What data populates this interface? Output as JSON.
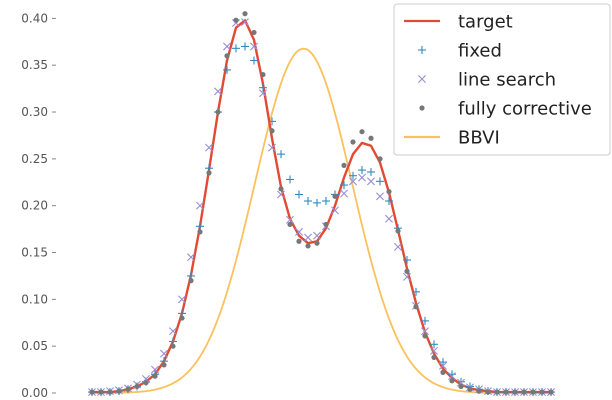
{
  "chart_data": {
    "type": "line",
    "title": "",
    "xlabel": "",
    "ylabel": "",
    "xlim": [
      -1.0,
      11.0
    ],
    "ylim": [
      0,
      0.41
    ],
    "y_ticks": [
      0.0,
      0.05,
      0.1,
      0.15,
      0.2,
      0.25,
      0.3,
      0.35,
      0.4
    ],
    "y_tick_labels": [
      "0.00",
      "0.05",
      "0.10",
      "0.15",
      "0.20",
      "0.25",
      "0.30",
      "0.35",
      "0.40"
    ],
    "x_tick_labels": [],
    "grid": false,
    "legend_position": "top-right",
    "sample_x": [
      -0.2,
      0.0,
      0.2,
      0.4,
      0.6,
      0.8,
      1.0,
      1.2,
      1.4,
      1.6,
      1.8,
      2.0,
      2.2,
      2.4,
      2.6,
      2.8,
      3.0,
      3.2,
      3.4,
      3.6,
      3.8,
      4.0,
      4.2,
      4.4,
      4.6,
      4.8,
      5.0,
      5.2,
      5.4,
      5.6,
      5.8,
      6.0,
      6.2,
      6.4,
      6.6,
      6.8,
      7.0,
      7.2,
      7.4,
      7.6,
      7.8,
      8.0,
      8.2,
      8.4,
      8.6,
      8.8,
      9.0,
      9.2,
      9.4,
      9.6,
      9.8,
      10.0
    ],
    "series": [
      {
        "name": "target",
        "style": "line",
        "color": "#e24a33",
        "values": [
          0.001,
          0.001,
          0.001,
          0.002,
          0.004,
          0.007,
          0.012,
          0.02,
          0.034,
          0.055,
          0.085,
          0.126,
          0.178,
          0.238,
          0.3,
          0.355,
          0.39,
          0.398,
          0.377,
          0.33,
          0.272,
          0.22,
          0.186,
          0.168,
          0.16,
          0.162,
          0.176,
          0.2,
          0.23,
          0.255,
          0.267,
          0.264,
          0.246,
          0.214,
          0.174,
          0.133,
          0.096,
          0.065,
          0.042,
          0.026,
          0.016,
          0.009,
          0.005,
          0.003,
          0.002,
          0.001,
          0.001,
          0.001,
          0.001,
          0.001,
          0.001,
          0.001
        ]
      },
      {
        "name": "fixed",
        "style": "plus",
        "color": "#348abd",
        "values": [
          0.001,
          0.001,
          0.001,
          0.002,
          0.004,
          0.007,
          0.012,
          0.02,
          0.034,
          0.055,
          0.085,
          0.125,
          0.178,
          0.24,
          0.3,
          0.345,
          0.368,
          0.37,
          0.355,
          0.326,
          0.29,
          0.255,
          0.228,
          0.212,
          0.205,
          0.203,
          0.205,
          0.212,
          0.222,
          0.232,
          0.238,
          0.236,
          0.226,
          0.205,
          0.176,
          0.142,
          0.108,
          0.077,
          0.052,
          0.033,
          0.02,
          0.012,
          0.007,
          0.004,
          0.002,
          0.001,
          0.001,
          0.001,
          0.001,
          0.001,
          0.001,
          0.001
        ]
      },
      {
        "name": "line search",
        "style": "x",
        "color": "#988ed5",
        "values": [
          0.001,
          0.001,
          0.002,
          0.003,
          0.005,
          0.009,
          0.015,
          0.025,
          0.042,
          0.066,
          0.1,
          0.145,
          0.2,
          0.262,
          0.322,
          0.37,
          0.395,
          0.396,
          0.37,
          0.32,
          0.262,
          0.212,
          0.185,
          0.172,
          0.166,
          0.168,
          0.178,
          0.195,
          0.213,
          0.226,
          0.23,
          0.226,
          0.21,
          0.186,
          0.156,
          0.124,
          0.093,
          0.066,
          0.045,
          0.029,
          0.018,
          0.011,
          0.006,
          0.004,
          0.002,
          0.001,
          0.001,
          0.001,
          0.001,
          0.001,
          0.001,
          0.001
        ]
      },
      {
        "name": "fully corrective",
        "style": "dot",
        "color": "#777777",
        "values": [
          0.001,
          0.001,
          0.001,
          0.002,
          0.004,
          0.007,
          0.011,
          0.018,
          0.03,
          0.05,
          0.08,
          0.12,
          0.172,
          0.235,
          0.3,
          0.36,
          0.398,
          0.405,
          0.385,
          0.34,
          0.28,
          0.218,
          0.18,
          0.162,
          0.157,
          0.16,
          0.18,
          0.21,
          0.243,
          0.268,
          0.279,
          0.272,
          0.25,
          0.215,
          0.173,
          0.13,
          0.092,
          0.061,
          0.038,
          0.022,
          0.013,
          0.007,
          0.004,
          0.002,
          0.001,
          0.001,
          0.001,
          0.001,
          0.001,
          0.001,
          0.001,
          0.001
        ]
      },
      {
        "name": "BBVI",
        "style": "line",
        "color": "#fbc15e",
        "gaussian": {
          "mean": 4.5,
          "sd": 1.085
        }
      }
    ]
  }
}
